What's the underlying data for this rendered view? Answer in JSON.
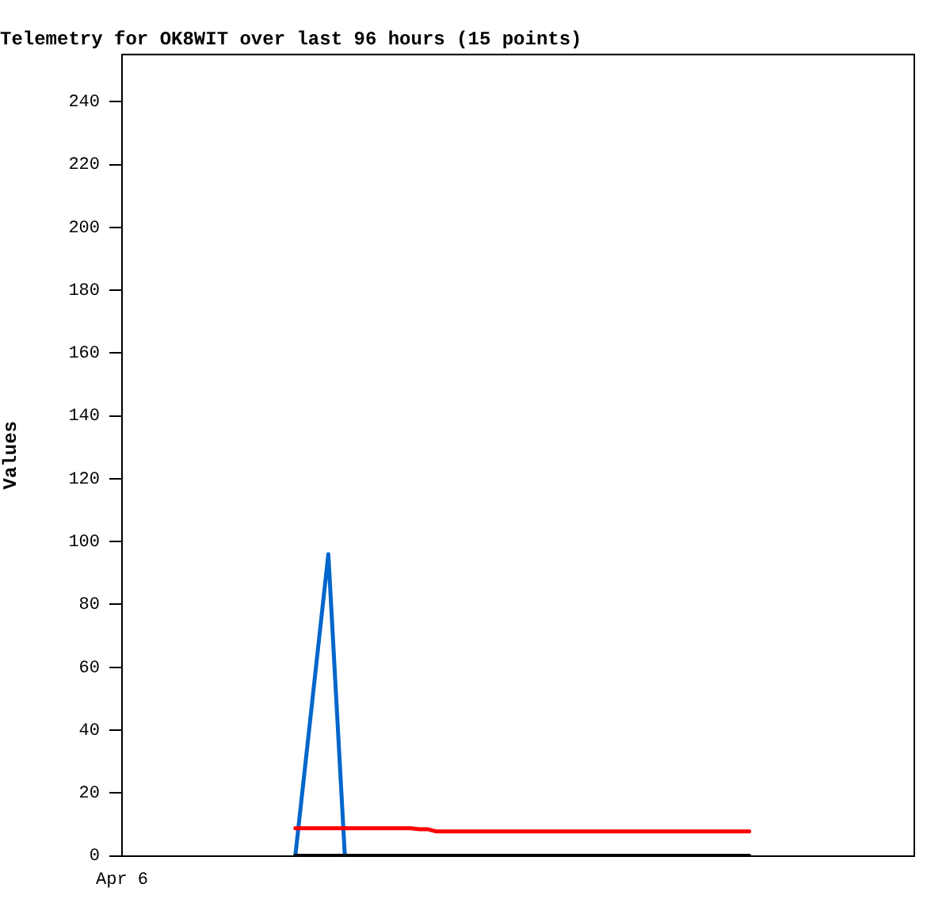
{
  "chart_data": {
    "type": "line",
    "title": "Telemetry for OK8WIT over last 96 hours (15 points)",
    "ylabel": "Values",
    "categories": [
      "Apr 6",
      null,
      null,
      null,
      null,
      null,
      null,
      null,
      null,
      null,
      null,
      null,
      null,
      null,
      null,
      null,
      null,
      null,
      null,
      null,
      null,
      null,
      null,
      null,
      null,
      null,
      null,
      null,
      null,
      null,
      null,
      null,
      null,
      null,
      null,
      null,
      null,
      null,
      null,
      null,
      null,
      null,
      null,
      null,
      null,
      null,
      null,
      null,
      null,
      null,
      null,
      null,
      null,
      null,
      null,
      null,
      null,
      null,
      null,
      null,
      null,
      null,
      null,
      null,
      null,
      null,
      null,
      null,
      null,
      null,
      null,
      null,
      null,
      null,
      null,
      null,
      null,
      null,
      null,
      null,
      null,
      null,
      null,
      null,
      null,
      null,
      null,
      null,
      null,
      null,
      null,
      null,
      null,
      null,
      null,
      null,
      null
    ],
    "ylim": [
      0,
      255
    ],
    "yticks": [
      0,
      20,
      40,
      60,
      80,
      100,
      120,
      140,
      160,
      180,
      200,
      220,
      240
    ],
    "grid": false,
    "legend": false,
    "marker": "none",
    "line_style": "solid",
    "series": [
      {
        "color": "#000000",
        "values": [
          null,
          null,
          null,
          null,
          null,
          null,
          null,
          null,
          null,
          null,
          null,
          null,
          null,
          null,
          null,
          null,
          null,
          null,
          null,
          null,
          null,
          0,
          null,
          null,
          null,
          null,
          null,
          null,
          null,
          null,
          null,
          null,
          null,
          null,
          null,
          null,
          null,
          null,
          null,
          null,
          null,
          null,
          null,
          null,
          null,
          null,
          null,
          null,
          null,
          null,
          null,
          null,
          null,
          null,
          null,
          null,
          null,
          null,
          null,
          null,
          null,
          null,
          null,
          null,
          null,
          null,
          null,
          null,
          null,
          null,
          null,
          null,
          null,
          null,
          null,
          null,
          0,
          null,
          null,
          null,
          null,
          null,
          null,
          null,
          null,
          null,
          null,
          null,
          null,
          null,
          null,
          null,
          null,
          null,
          null,
          null,
          null
        ]
      },
      {
        "color": "#ff0000",
        "values": [
          null,
          null,
          null,
          null,
          null,
          null,
          null,
          null,
          null,
          null,
          null,
          null,
          null,
          null,
          null,
          null,
          null,
          null,
          null,
          null,
          null,
          8.8,
          null,
          null,
          null,
          null,
          null,
          null,
          null,
          null,
          null,
          null,
          null,
          null,
          null,
          8.8,
          8.5,
          8.5,
          7.8,
          null,
          null,
          null,
          null,
          null,
          null,
          null,
          null,
          null,
          null,
          null,
          null,
          null,
          null,
          null,
          null,
          null,
          null,
          null,
          null,
          null,
          null,
          null,
          null,
          null,
          null,
          null,
          null,
          null,
          null,
          null,
          null,
          null,
          null,
          null,
          null,
          null,
          7.8,
          null,
          null,
          null,
          null,
          null,
          null,
          null,
          null,
          null,
          null,
          null,
          null,
          null,
          null,
          null,
          null,
          null,
          null,
          null,
          null
        ]
      },
      {
        "color": "#0066cc",
        "values": [
          null,
          null,
          null,
          null,
          null,
          null,
          null,
          null,
          null,
          null,
          null,
          null,
          null,
          null,
          null,
          null,
          null,
          null,
          null,
          null,
          null,
          0,
          null,
          null,
          null,
          96,
          null,
          0,
          null,
          null,
          null,
          null,
          null,
          null,
          null,
          null,
          null,
          null,
          null,
          null,
          null,
          null,
          null,
          null,
          null,
          null,
          null,
          null,
          null,
          null,
          null,
          null,
          null,
          null,
          null,
          null,
          null,
          null,
          null,
          null,
          null,
          null,
          null,
          null,
          null,
          null,
          null,
          null,
          null,
          null,
          null,
          null,
          null,
          null,
          null,
          null,
          null,
          null,
          null,
          null,
          null,
          null,
          null,
          null,
          null,
          null,
          null,
          null,
          null,
          null,
          null,
          null,
          null,
          null,
          null,
          null,
          null
        ]
      }
    ]
  }
}
